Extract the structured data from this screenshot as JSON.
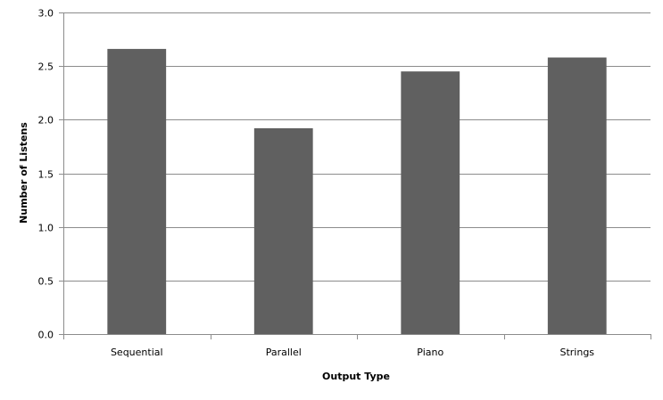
{
  "chart_data": {
    "type": "bar",
    "title": "",
    "xlabel": "Output Type",
    "ylabel": "Number of Listens",
    "categories": [
      "Sequential",
      "Parallel",
      "Piano",
      "Strings"
    ],
    "values": [
      2.66,
      1.92,
      2.45,
      2.58
    ],
    "ylim": [
      0,
      3.0
    ],
    "yticks": [
      "0.0",
      "0.5",
      "1.0",
      "1.5",
      "2.0",
      "2.5",
      "3.0"
    ],
    "grid": true,
    "legend": "none",
    "bar_color": "#606060",
    "gridline_color": "#8c8c8c"
  }
}
